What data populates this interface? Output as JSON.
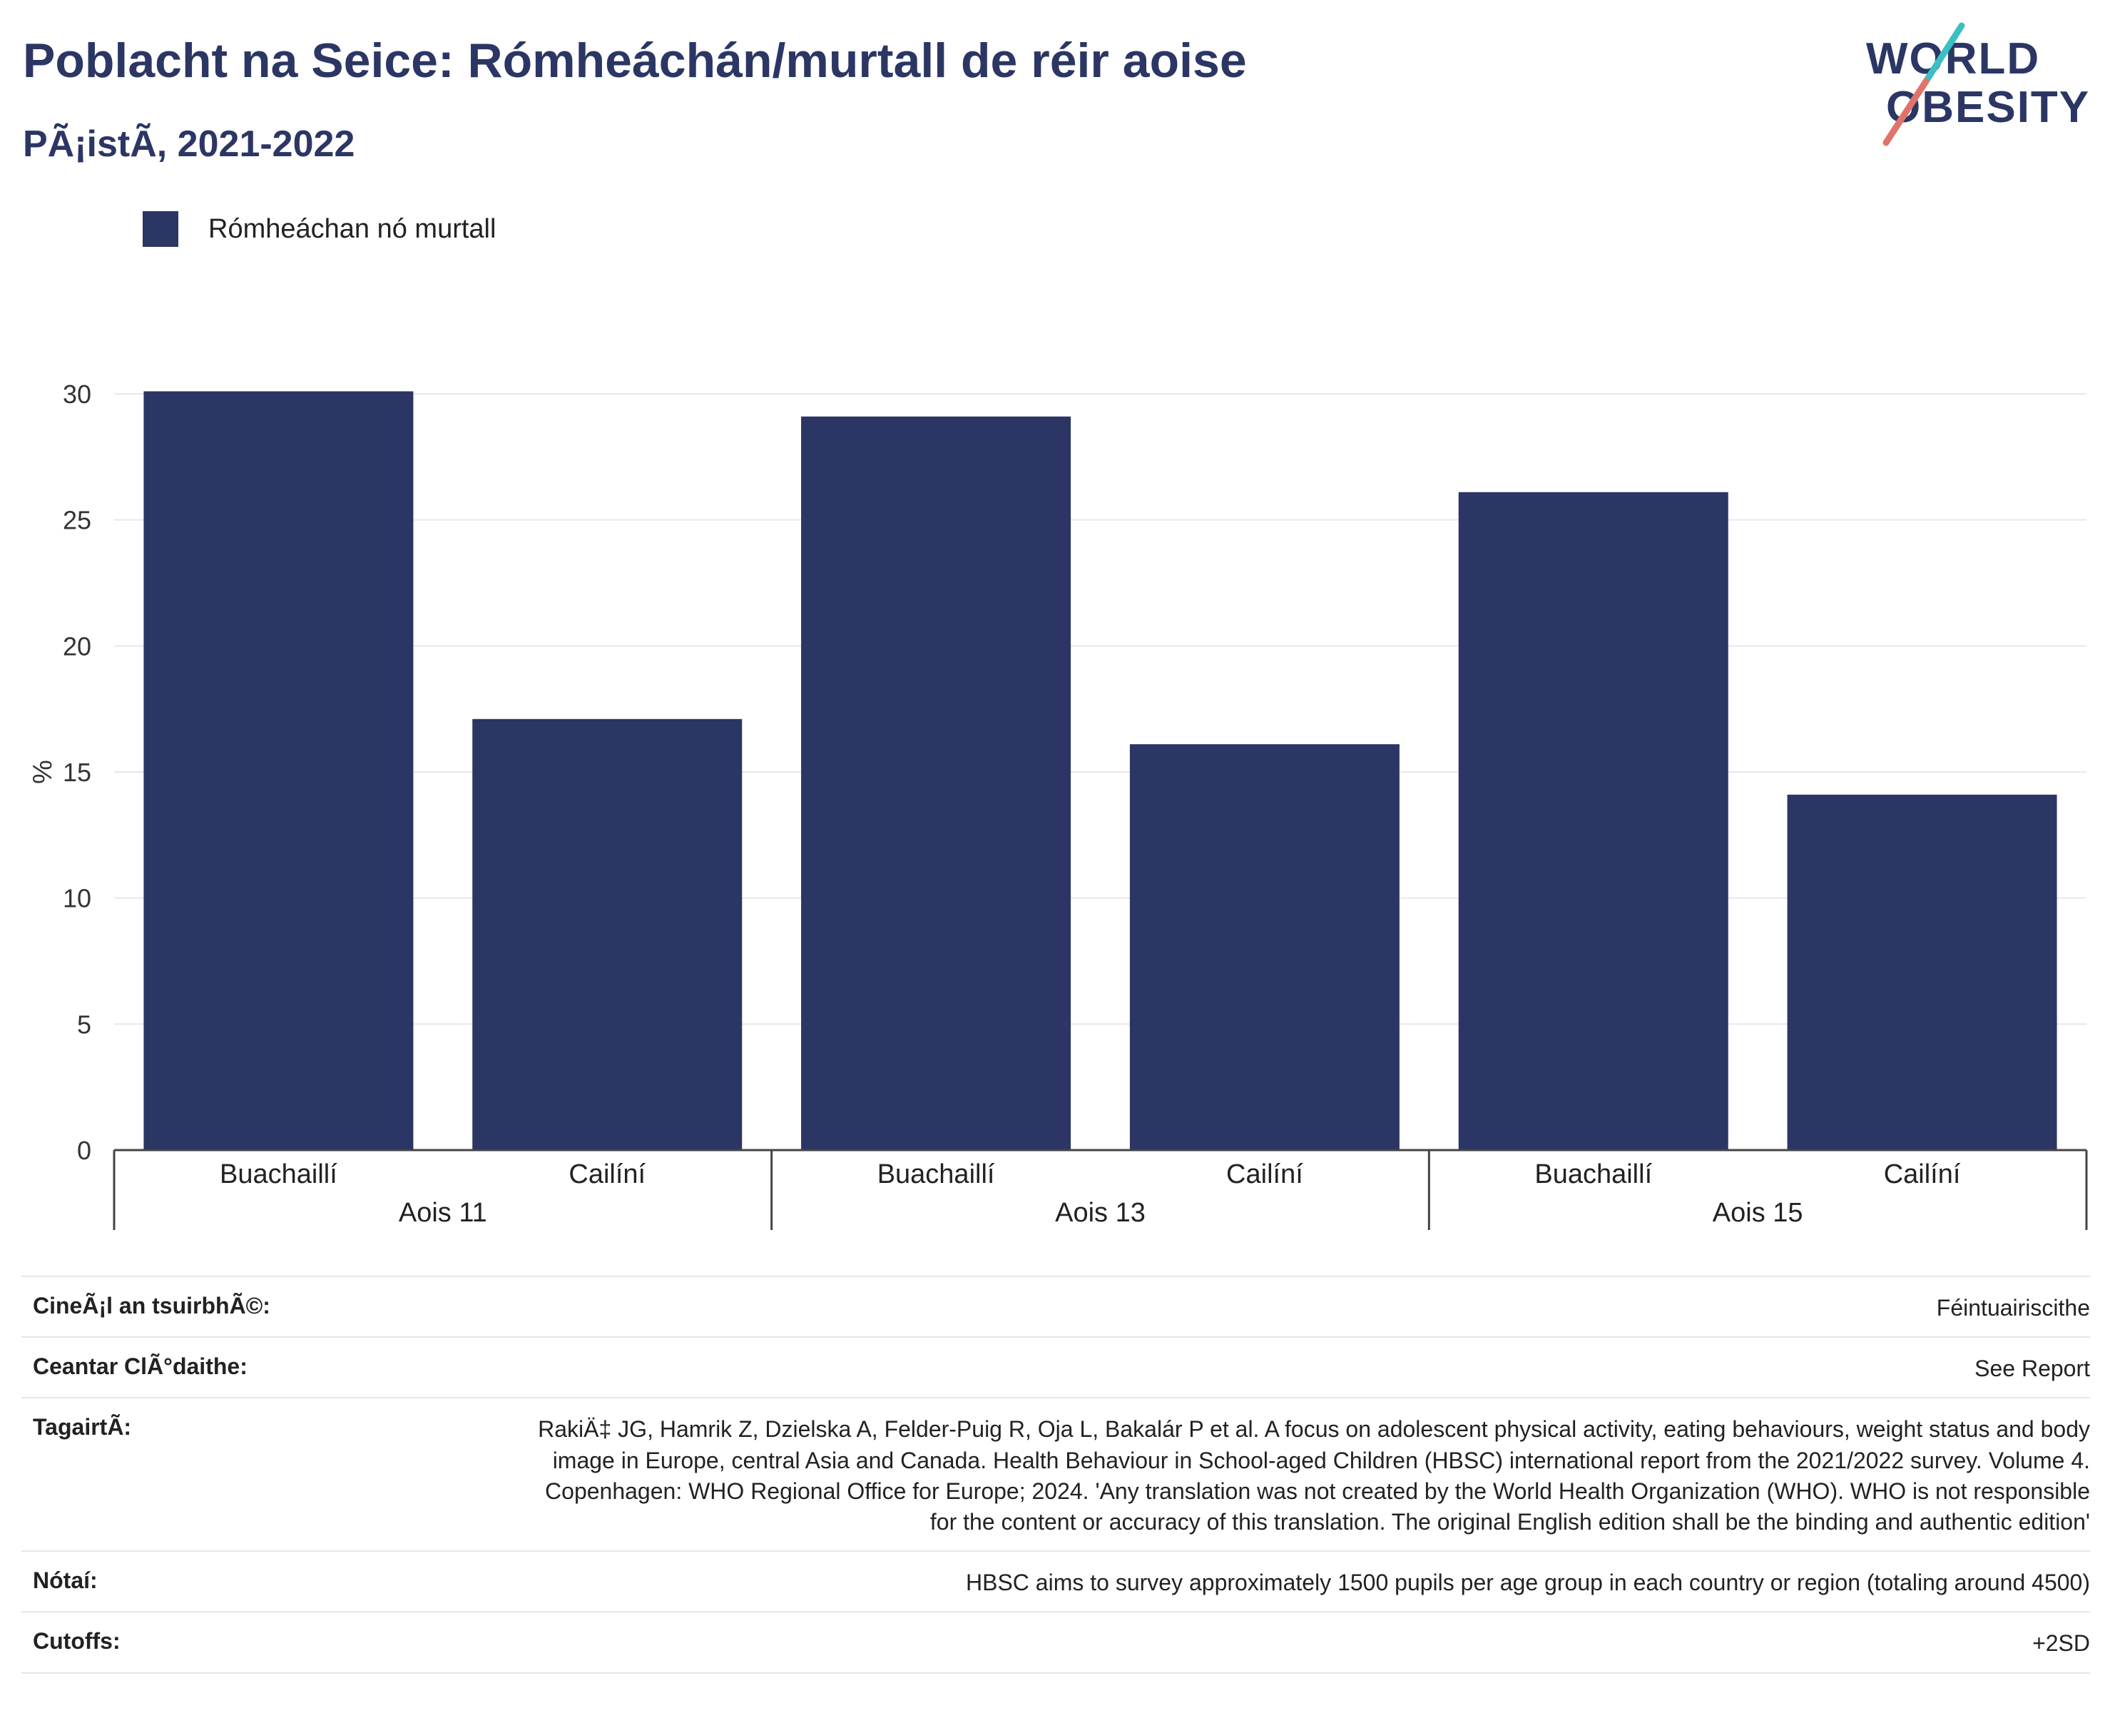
{
  "header": {
    "title": "Poblacht na Seice: Rómheáchán/murtall de réir aoise",
    "subtitle": "PÃ¡istÃ, 2021-2022"
  },
  "logo": {
    "line1": "WORLD",
    "line2": "OBESITY",
    "colors": {
      "navy": "#2b3664",
      "teal": "#3bbfc2",
      "coral": "#e0736a"
    }
  },
  "legend": {
    "label": "Rómheáchan nó murtall",
    "color": "#2b3664"
  },
  "chart_data": {
    "type": "bar",
    "ylabel": "%",
    "ylim": [
      0,
      30
    ],
    "yticks": [
      0,
      5,
      10,
      15,
      20,
      25,
      30
    ],
    "grid": true,
    "groups": [
      {
        "label": "Aois 11",
        "bars": [
          {
            "category": "Buachaillí",
            "value": 30.1
          },
          {
            "category": "Cailíní",
            "value": 17.1
          }
        ]
      },
      {
        "label": "Aois 13",
        "bars": [
          {
            "category": "Buachaillí",
            "value": 29.1
          },
          {
            "category": "Cailíní",
            "value": 16.1
          }
        ]
      },
      {
        "label": "Aois 15",
        "bars": [
          {
            "category": "Buachaillí",
            "value": 26.1
          },
          {
            "category": "Cailíní",
            "value": 14.1
          }
        ]
      }
    ],
    "series": [
      {
        "name": "Rómheáchan nó murtall",
        "color": "#2b3664"
      }
    ]
  },
  "meta": [
    {
      "key": "CineÃ¡l an tsuirbhÃ©:",
      "value": "Féintuairiscithe"
    },
    {
      "key": "Ceantar ClÃ°daithe:",
      "value": "See Report"
    },
    {
      "key": "TagairtÃ:",
      "value": "RakiÄ‡ JG, Hamrik Z, Dzielska A, Felder-Puig R, Oja L, Bakalár P et al. A focus on adolescent physical activity, eating behaviours, weight status and body image in Europe, central Asia and Canada. Health Behaviour in School-aged Children (HBSC) international report from the 2021/2022 survey. Volume 4. Copenhagen: WHO Regional Office for Europe; 2024. 'Any translation was not created by the World Health Organization (WHO). WHO is not responsible for the content or accuracy of this translation. The original English edition shall be the binding and authentic edition'"
    },
    {
      "key": "Nótaí:",
      "value": "HBSC aims to survey approximately 1500 pupils per age group in each country or region (totaling around 4500)"
    },
    {
      "key": "Cutoffs:",
      "value": "+2SD"
    }
  ]
}
